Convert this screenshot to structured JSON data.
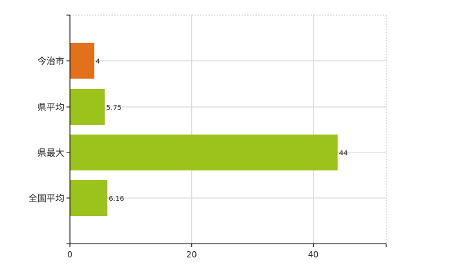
{
  "chart_data": {
    "type": "bar",
    "orientation": "horizontal",
    "categories": [
      "今治市",
      "県平均",
      "県最大",
      "全国平均"
    ],
    "values": [
      4,
      5.75,
      44,
      6.16
    ],
    "data_labels": [
      "4",
      "5.75",
      "44",
      "6.16"
    ],
    "bar_colors": [
      "#E2711C",
      "#9BC31B",
      "#9BC31B",
      "#9BC31B"
    ],
    "xlim": [
      0,
      52
    ],
    "xticks": [
      0,
      20,
      40
    ],
    "xtick_labels": [
      "0",
      "20",
      "40"
    ],
    "grid": true,
    "title": "",
    "xlabel": "",
    "ylabel": ""
  }
}
